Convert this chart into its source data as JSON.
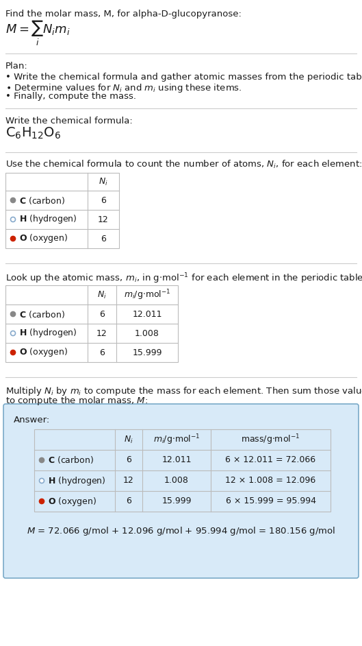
{
  "title_line": "Find the molar mass, M, for alpha-D-glucopyranose:",
  "plan_header": "Plan:",
  "plan_bullet1": "• Write the chemical formula and gather atomic masses from the periodic table.",
  "plan_bullet2_pre": "• Determine values for ",
  "plan_bullet2_mid": " and ",
  "plan_bullet2_post": " using these items.",
  "plan_bullet3": "• Finally, compute the mass.",
  "chem_formula_header": "Write the chemical formula:",
  "table1_header_pre": "Use the chemical formula to count the number of atoms, ",
  "table1_header_post": ", for each element:",
  "table2_header_pre": "Look up the atomic mass, ",
  "table2_header_mid": ", in g·mol",
  "table2_header_post": " for each element in the periodic table:",
  "answer_intro_line1": "Multiply ",
  "answer_intro_mid1": " by ",
  "answer_intro_mid2": " to compute the mass for each element. Then sum those values",
  "answer_intro_line2_pre": "to compute the molar mass, ",
  "answer_intro_line2_post": ":",
  "answer_header": "Answer:",
  "table1_rows": [
    {
      "symbol": "C",
      "name": "carbon",
      "dot_color": "#888888",
      "dot_filled": true,
      "Ni": "6"
    },
    {
      "symbol": "H",
      "name": "hydrogen",
      "dot_color": "#88aacc",
      "dot_filled": false,
      "Ni": "12"
    },
    {
      "symbol": "O",
      "name": "oxygen",
      "dot_color": "#cc2200",
      "dot_filled": true,
      "Ni": "6"
    }
  ],
  "table2_rows": [
    {
      "symbol": "C",
      "name": "carbon",
      "dot_color": "#888888",
      "dot_filled": true,
      "Ni": "6",
      "mi": "12.011"
    },
    {
      "symbol": "H",
      "name": "hydrogen",
      "dot_color": "#88aacc",
      "dot_filled": false,
      "Ni": "12",
      "mi": "1.008"
    },
    {
      "symbol": "O",
      "name": "oxygen",
      "dot_color": "#cc2200",
      "dot_filled": true,
      "Ni": "6",
      "mi": "15.999"
    }
  ],
  "answer_rows": [
    {
      "symbol": "C",
      "name": "carbon",
      "dot_color": "#888888",
      "dot_filled": true,
      "Ni": "6",
      "mi": "12.011",
      "mass": "6 × 12.011 = 72.066"
    },
    {
      "symbol": "H",
      "name": "hydrogen",
      "dot_color": "#88aacc",
      "dot_filled": false,
      "Ni": "12",
      "mi": "1.008",
      "mass": "12 × 1.008 = 12.096"
    },
    {
      "symbol": "O",
      "name": "oxygen",
      "dot_color": "#cc2200",
      "dot_filled": true,
      "Ni": "6",
      "mi": "15.999",
      "mass": "6 × 15.999 = 95.994"
    }
  ],
  "final_eq": "M = 72.066 g/mol + 12.096 g/mol + 95.994 g/mol = 180.156 g/mol",
  "answer_bg": "#d8eaf8",
  "answer_border": "#7aaac8",
  "sep_color": "#cccccc",
  "table_line_color": "#bbbbbb",
  "bg_color": "#ffffff"
}
